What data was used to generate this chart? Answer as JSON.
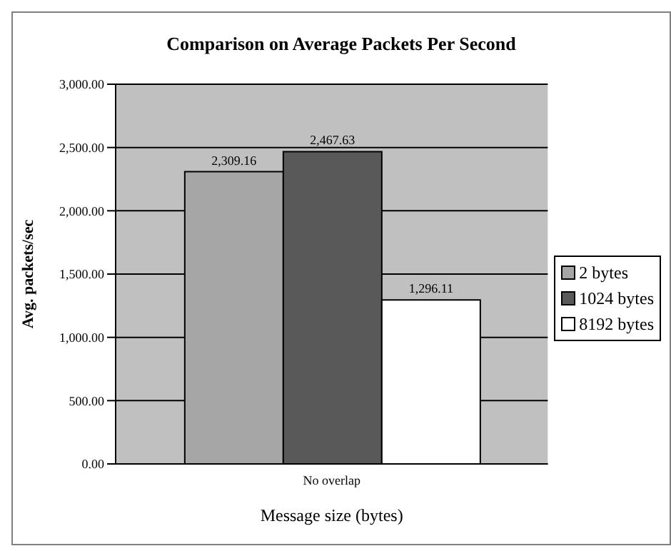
{
  "chart_data": {
    "type": "bar",
    "title": "Comparison on Average Packets Per Second",
    "xlabel": "Message size (bytes)",
    "ylabel": "Avg. packets/sec",
    "categories": [
      "No overlap"
    ],
    "series": [
      {
        "name": "2 bytes",
        "color": "#a6a6a6",
        "values": [
          2309.16
        ],
        "value_labels": [
          "2,309.16"
        ]
      },
      {
        "name": "1024 bytes",
        "color": "#595959",
        "values": [
          2467.63
        ],
        "value_labels": [
          "2,467.63"
        ]
      },
      {
        "name": "8192 bytes",
        "color": "#ffffff",
        "values": [
          1296.11
        ],
        "value_labels": [
          "1,296.11"
        ]
      }
    ],
    "ylim": [
      0,
      3000
    ],
    "yticks": [
      {
        "value": 0,
        "label": "0.00"
      },
      {
        "value": 500,
        "label": "500.00"
      },
      {
        "value": 1000,
        "label": "1,000.00"
      },
      {
        "value": 1500,
        "label": "1,500.00"
      },
      {
        "value": 2000,
        "label": "2,000.00"
      },
      {
        "value": 2500,
        "label": "2,500.00"
      },
      {
        "value": 3000,
        "label": "3,000.00"
      }
    ],
    "grid": "y",
    "legend": "right"
  }
}
